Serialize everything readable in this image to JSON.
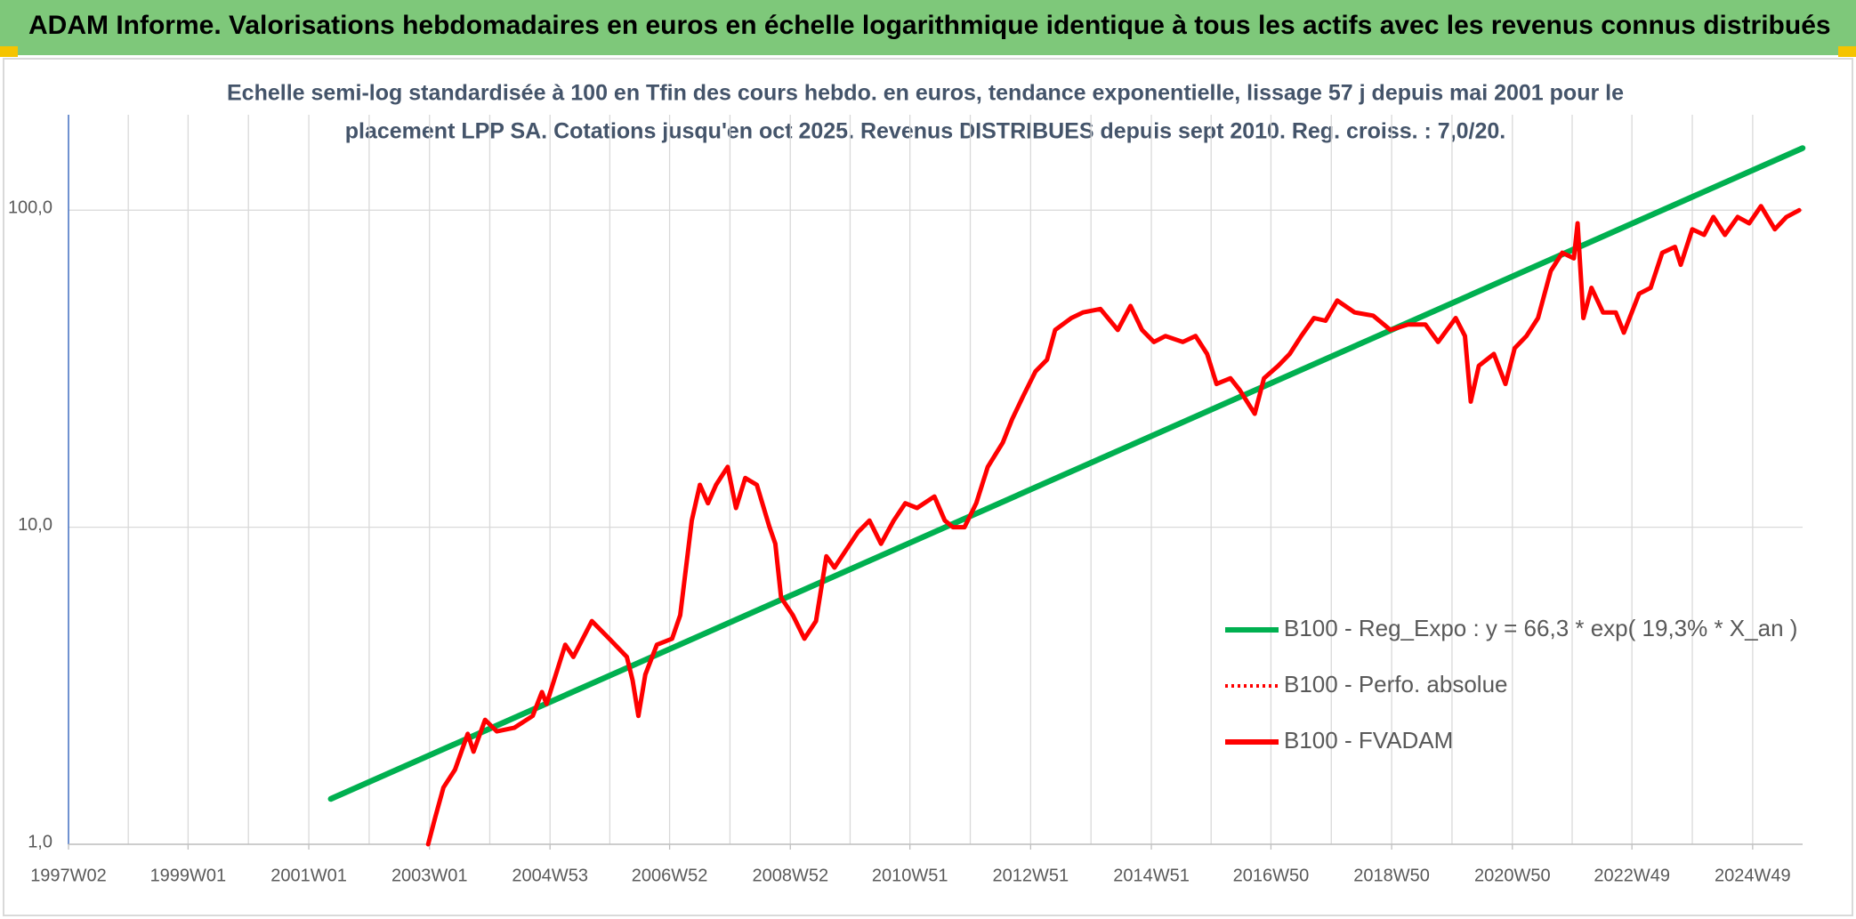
{
  "header": {
    "title": "ADAM Informe. Valorisations hebdomadaires en euros en échelle logarithmique identique à tous les actifs avec les revenus connus distribués"
  },
  "chart_data": {
    "type": "line",
    "subtitle": [
      "Echelle semi-log standardisée à 100 en Tfin des cours hebdo. en euros, tendance exponentielle, lissage 57 j depuis mai 2001 pour le",
      "placement LPP SA. Cotations jusqu'en oct 2025. Revenus DISTRIBUES depuis sept 2010. Reg. croiss. : 7,0/20."
    ],
    "log_y": true,
    "grid": true,
    "legend": "right",
    "xlim": [
      "1997W02",
      "2025W40"
    ],
    "xticks": [
      "1997W02",
      "1999W01",
      "2001W01",
      "2003W01",
      "2004W53",
      "2006W52",
      "2008W52",
      "2010W51",
      "2012W51",
      "2014W51",
      "2016W50",
      "2018W50",
      "2020W50",
      "2022W49",
      "2024W49"
    ],
    "ylim": [
      1,
      200
    ],
    "yticks": [
      {
        "value": 1,
        "label": "1,0"
      },
      {
        "value": 10,
        "label": "10,0"
      },
      {
        "value": 100,
        "label": "100,0"
      }
    ],
    "series": [
      {
        "name": "B100 - Reg_Expo : y = 66,3 * exp( 19,3% *  X_an )",
        "color": "#00b050",
        "dash": "solid",
        "x": [
          "2001W20",
          "2025W40"
        ],
        "values": [
          1.39,
          157
        ]
      },
      {
        "name": "B100 - Perfo. absolue",
        "color": "#ff0000",
        "dash": "dotted",
        "x": [],
        "values": []
      },
      {
        "name": "B100 - FVADAM",
        "color": "#ff0000",
        "dash": "solid",
        "x": [
          "2002W52",
          "2003W06",
          "2003W13",
          "2003W23",
          "2003W34",
          "2003W39",
          "2003W49",
          "2004W07",
          "2004W22",
          "2004W38",
          "2004W46",
          "2004W50",
          "2005W14",
          "2005W21",
          "2005W37",
          "2005W52",
          "2006W15",
          "2006W20",
          "2006W25",
          "2006W31",
          "2006W41",
          "2007W02",
          "2007W09",
          "2007W19",
          "2007W26",
          "2007W33",
          "2007W40",
          "2007W50",
          "2008W05",
          "2008W13",
          "2008W23",
          "2008W34",
          "2008W39",
          "2008W44",
          "2009W02",
          "2009W12",
          "2009W22",
          "2009W31",
          "2009W38",
          "2009W48",
          "2010W06",
          "2010W16",
          "2010W26",
          "2010W37",
          "2010W47",
          "2011W05",
          "2011W20",
          "2011W29",
          "2011W36",
          "2011W46",
          "2012W04",
          "2012W14",
          "2012W27",
          "2012W35",
          "2012W45",
          "2013W03",
          "2013W13",
          "2013W20",
          "2013W34",
          "2013W44",
          "2014W07",
          "2014W22",
          "2014W33",
          "2014W43",
          "2015W01",
          "2015W11",
          "2015W26",
          "2015W37",
          "2015W47",
          "2016W03",
          "2016W15",
          "2016W23",
          "2016W36",
          "2016W44",
          "2017W04",
          "2017W14",
          "2017W24",
          "2017W35",
          "2017W45",
          "2018W03",
          "2018W18",
          "2018W34",
          "2018W49",
          "2019W12",
          "2019W27",
          "2019W38",
          "2020W01",
          "2020W09",
          "2020W14",
          "2020W21",
          "2020W34",
          "2020W44",
          "2020W52",
          "2021W10",
          "2021W20",
          "2021W31",
          "2021W41",
          "2021W51",
          "2022W02",
          "2022W07",
          "2022W14",
          "2022W24",
          "2022W35",
          "2022W42",
          "2023W03",
          "2023W13",
          "2023W23",
          "2023W34",
          "2023W39",
          "2023W49",
          "2024W07",
          "2024W15",
          "2024W25",
          "2024W36",
          "2024W46",
          "2025W04",
          "2025W16",
          "2025W26",
          "2025W37"
        ],
        "values": [
          1.0,
          1.22,
          1.51,
          1.72,
          2.23,
          1.96,
          2.47,
          2.27,
          2.33,
          2.54,
          3.02,
          2.77,
          4.26,
          3.9,
          5.06,
          4.45,
          3.9,
          3.29,
          2.54,
          3.43,
          4.26,
          4.45,
          5.28,
          10.5,
          13.6,
          11.9,
          13.6,
          15.5,
          11.5,
          14.3,
          13.6,
          10.0,
          8.87,
          6.0,
          5.28,
          4.45,
          5.06,
          8.1,
          7.46,
          8.48,
          9.65,
          10.5,
          8.87,
          10.5,
          11.9,
          11.5,
          12.5,
          10.5,
          10.0,
          10.0,
          11.9,
          15.5,
          18.5,
          21.9,
          26.1,
          31.0,
          33.8,
          41.9,
          45.7,
          47.6,
          48.8,
          41.9,
          49.9,
          41.9,
          38.4,
          40.1,
          38.4,
          40.1,
          35.2,
          28.3,
          29.5,
          27.1,
          22.8,
          29.5,
          32.3,
          35.2,
          40.1,
          45.7,
          44.8,
          51.9,
          47.6,
          46.5,
          41.9,
          43.6,
          43.6,
          38.4,
          45.7,
          40.1,
          24.9,
          32.3,
          35.2,
          28.3,
          36.7,
          40.1,
          45.7,
          64.3,
          73.4,
          70.5,
          90.9,
          45.7,
          56.9,
          47.6,
          47.6,
          41.1,
          54.5,
          56.9,
          73.4,
          76.6,
          67.3,
          87.1,
          83.6,
          95.2,
          83.6,
          95.2,
          90.9,
          103,
          87.1,
          95.2,
          100
        ]
      }
    ]
  }
}
